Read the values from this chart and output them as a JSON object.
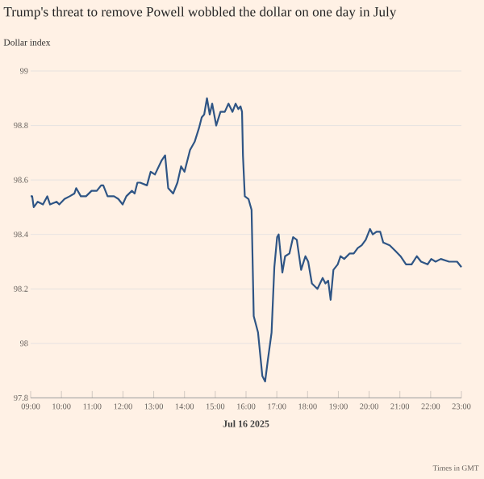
{
  "chart_data": {
    "type": "line",
    "title": "Trump's threat to remove Powell wobbled the dollar on one day in July",
    "ylabel": "Dollar index",
    "xlabel": "Jul 16 2025",
    "annotations": [
      "Times in GMT"
    ],
    "x": [
      9.0,
      9.05,
      9.1,
      9.23,
      9.4,
      9.54,
      9.63,
      9.84,
      9.93,
      10.1,
      10.27,
      10.42,
      10.48,
      10.63,
      10.8,
      10.98,
      11.15,
      11.29,
      11.36,
      11.5,
      11.71,
      11.85,
      11.99,
      12.11,
      12.29,
      12.38,
      12.47,
      12.56,
      12.78,
      12.9,
      13.04,
      13.25,
      13.37,
      13.47,
      13.63,
      13.77,
      13.89,
      14.0,
      14.18,
      14.33,
      14.47,
      14.56,
      14.64,
      14.73,
      14.82,
      14.9,
      15.03,
      15.17,
      15.31,
      15.43,
      15.56,
      15.66,
      15.75,
      15.82,
      15.87,
      15.9,
      15.96,
      16.08,
      16.18,
      16.25,
      16.39,
      16.53,
      16.62,
      16.71,
      16.83,
      16.92,
      17.01,
      17.06,
      17.18,
      17.27,
      17.41,
      17.53,
      17.65,
      17.79,
      17.93,
      18.02,
      18.14,
      18.32,
      18.49,
      18.58,
      18.67,
      18.75,
      18.84,
      18.98,
      19.07,
      19.19,
      19.37,
      19.5,
      19.63,
      19.76,
      19.89,
      20.03,
      20.12,
      20.24,
      20.36,
      20.46,
      20.67,
      20.85,
      21.02,
      21.2,
      21.38,
      21.55,
      21.69,
      21.9,
      22.02,
      22.16,
      22.33,
      22.6,
      22.86,
      23.0
    ],
    "series": [
      {
        "color": "#2f5585",
        "values": [
          98.54,
          98.54,
          98.5,
          98.52,
          98.51,
          98.54,
          98.51,
          98.52,
          98.51,
          98.53,
          98.54,
          98.55,
          98.57,
          98.54,
          98.54,
          98.56,
          98.56,
          98.58,
          98.58,
          98.54,
          98.54,
          98.53,
          98.51,
          98.54,
          98.56,
          98.55,
          98.59,
          98.59,
          98.58,
          98.63,
          98.62,
          98.67,
          98.69,
          98.57,
          98.55,
          98.59,
          98.65,
          98.63,
          98.71,
          98.74,
          98.79,
          98.83,
          98.84,
          98.9,
          98.84,
          98.88,
          98.8,
          98.85,
          98.85,
          98.88,
          98.85,
          98.88,
          98.86,
          98.87,
          98.85,
          98.69,
          98.54,
          98.53,
          98.49,
          98.1,
          98.04,
          97.88,
          97.86,
          97.94,
          98.04,
          98.28,
          98.39,
          98.4,
          98.26,
          98.32,
          98.33,
          98.39,
          98.38,
          98.27,
          98.32,
          98.3,
          98.22,
          98.2,
          98.24,
          98.22,
          98.23,
          98.16,
          98.27,
          98.29,
          98.32,
          98.31,
          98.33,
          98.33,
          98.35,
          98.36,
          98.38,
          98.42,
          98.4,
          98.41,
          98.41,
          98.37,
          98.36,
          98.34,
          98.32,
          98.29,
          98.29,
          98.32,
          98.3,
          98.29,
          98.31,
          98.3,
          98.31,
          98.3,
          98.3,
          98.28
        ]
      }
    ],
    "xlim": [
      9,
      23
    ],
    "ylim": [
      97.8,
      99
    ],
    "xticks": [
      {
        "value": 9,
        "label": "09:00"
      },
      {
        "value": 10,
        "label": "10:00"
      },
      {
        "value": 11,
        "label": "11:00"
      },
      {
        "value": 12,
        "label": "12:00"
      },
      {
        "value": 13,
        "label": "13:00"
      },
      {
        "value": 14,
        "label": "14:00"
      },
      {
        "value": 15,
        "label": "15:00"
      },
      {
        "value": 16,
        "label": "16:00"
      },
      {
        "value": 17,
        "label": "17:00"
      },
      {
        "value": 18,
        "label": "18:00"
      },
      {
        "value": 19,
        "label": "19:00"
      },
      {
        "value": 20,
        "label": "20:00"
      },
      {
        "value": 21,
        "label": "21:00"
      },
      {
        "value": 22,
        "label": "22:00"
      },
      {
        "value": 23,
        "label": "23:00"
      }
    ],
    "yticks": [
      97.8,
      98,
      98.2,
      98.4,
      98.6,
      98.8,
      99
    ],
    "grid": "y",
    "marker": "none",
    "line_style": "solid"
  }
}
